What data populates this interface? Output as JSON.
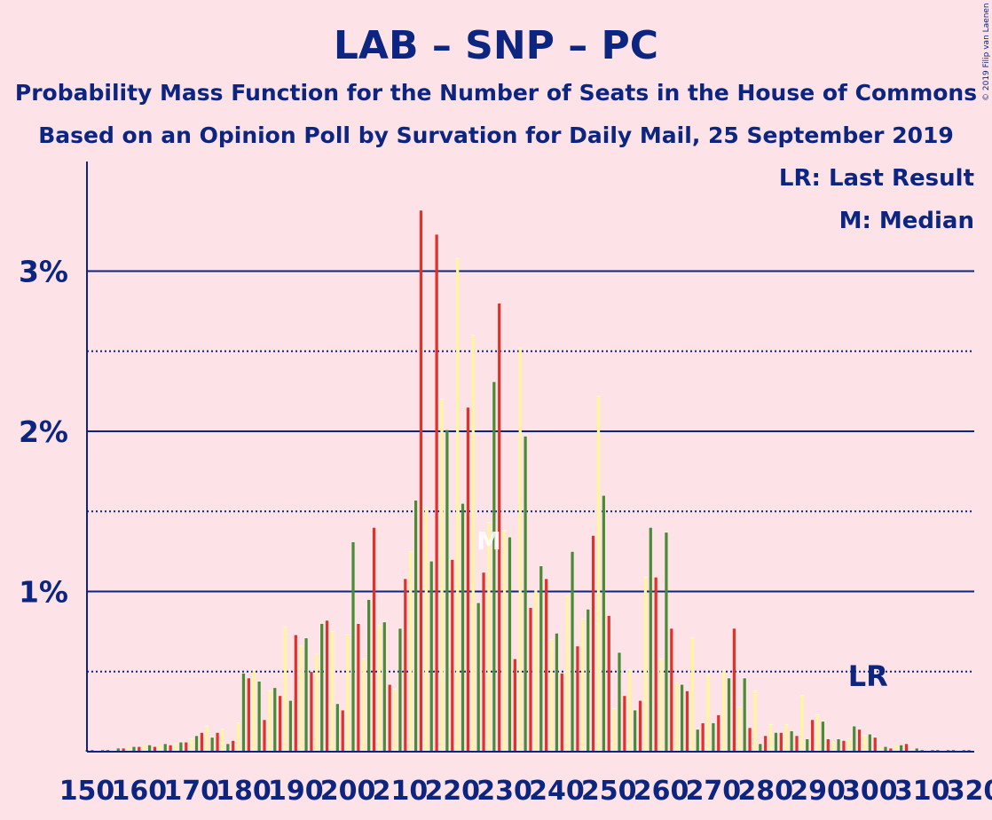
{
  "chart_data": {
    "type": "bar",
    "title": "LAB – SNP – PC",
    "subtitle": "Probability Mass Function for the Number of Seats in the House of Commons",
    "subtitle2": "Based on an Opinion Poll by Survation for Daily Mail, 25 September 2019",
    "credit": "© 2019 Filip van Laenen",
    "legend": {
      "last_result": "LR: Last Result",
      "median": "M: Median",
      "placement": "top-right"
    },
    "markers": {
      "last_result_label": "LR",
      "last_result_seat": 301,
      "median_label": "M",
      "median_seat": 227
    },
    "x_first": 150,
    "x_last": 320,
    "xlim": [
      150,
      320
    ],
    "x_ticks": [
      150,
      160,
      170,
      180,
      190,
      200,
      210,
      220,
      230,
      240,
      250,
      260,
      270,
      280,
      290,
      300,
      310,
      320
    ],
    "x_tick_labels": [
      "150",
      "160",
      "170",
      "180",
      "190",
      "200",
      "210",
      "220",
      "230",
      "240",
      "250",
      "260",
      "270",
      "280",
      "290",
      "300",
      "310",
      "320"
    ],
    "y_ticks": [
      1,
      2,
      3
    ],
    "y_tick_labels": [
      "1%",
      "2%",
      "3%"
    ],
    "y_minor_ticks": [
      0.5,
      1.5,
      2.5
    ],
    "ylim": [
      0,
      3.7
    ],
    "grid": true,
    "colors": {
      "background": "#FDE3E7",
      "text": "#0B2580",
      "grid": "#0B2580",
      "bars": [
        "#4A8C35",
        "#E0322A",
        "#FFF59D"
      ]
    },
    "series": [
      {
        "values": [
          0.01,
          0.01,
          0.01,
          0.01,
          0.01,
          0.01,
          0.02,
          0.02,
          0.03,
          0.03,
          0.03,
          0.04,
          0.04,
          0.03,
          0.04,
          0.05,
          0.04,
          0.05,
          0.06,
          0.06,
          0.08,
          0.1,
          0.12,
          0.16,
          0.09,
          0.12,
          0.14,
          0.05,
          0.07,
          0.18,
          0.49,
          0.46,
          0.51,
          0.44,
          0.2,
          0.38,
          0.4,
          0.35,
          0.78,
          0.32,
          0.73,
          0.66,
          0.71,
          0.5,
          0.61,
          0.8,
          0.82,
          0.75,
          0.3,
          0.26,
          0.73,
          1.31,
          0.8,
          0.58,
          0.95,
          1.4,
          0.79,
          0.81,
          0.42,
          0.39,
          0.77,
          1.08,
          1.25,
          1.57,
          3.38,
          1.52,
          1.19,
          3.23,
          2.2,
          2.01,
          1.2,
          3.08,
          1.55,
          2.15,
          2.6,
          0.93,
          1.12,
          1.43,
          2.31,
          2.8,
          1.38,
          1.34,
          0.58,
          2.52,
          1.97,
          0.9,
          1.01,
          1.16,
          1.08,
          0.7,
          0.74,
          0.49,
          0.97,
          1.25,
          0.66,
          0.83,
          0.89,
          1.35,
          2.22,
          1.6,
          0.85,
          0.27,
          0.62,
          0.35,
          0.51,
          0.26,
          0.32,
          1.09,
          1.4,
          1.09,
          0.58,
          1.37,
          0.77,
          0.43,
          0.42,
          0.38,
          0.71,
          0.14,
          0.18,
          0.48,
          0.18,
          0.23,
          0.51,
          0.46,
          0.77,
          0.28,
          0.46,
          0.15,
          0.38,
          0.05,
          0.1,
          0.17,
          0.12,
          0.12,
          0.17,
          0.13,
          0.1,
          0.35,
          0.08,
          0.2,
          0.23,
          0.19,
          0.08,
          0.06,
          0.08,
          0.07,
          0.08,
          0.16,
          0.14,
          0.1,
          0.11,
          0.09,
          0.03,
          0.03,
          0.02,
          0.04,
          0.04,
          0.05,
          0.02,
          0.02,
          0.01,
          0.01,
          0.01,
          0.01,
          0.01,
          0.01,
          0.01,
          0.01,
          0.01,
          0.01,
          0.01
        ]
      }
    ]
  }
}
